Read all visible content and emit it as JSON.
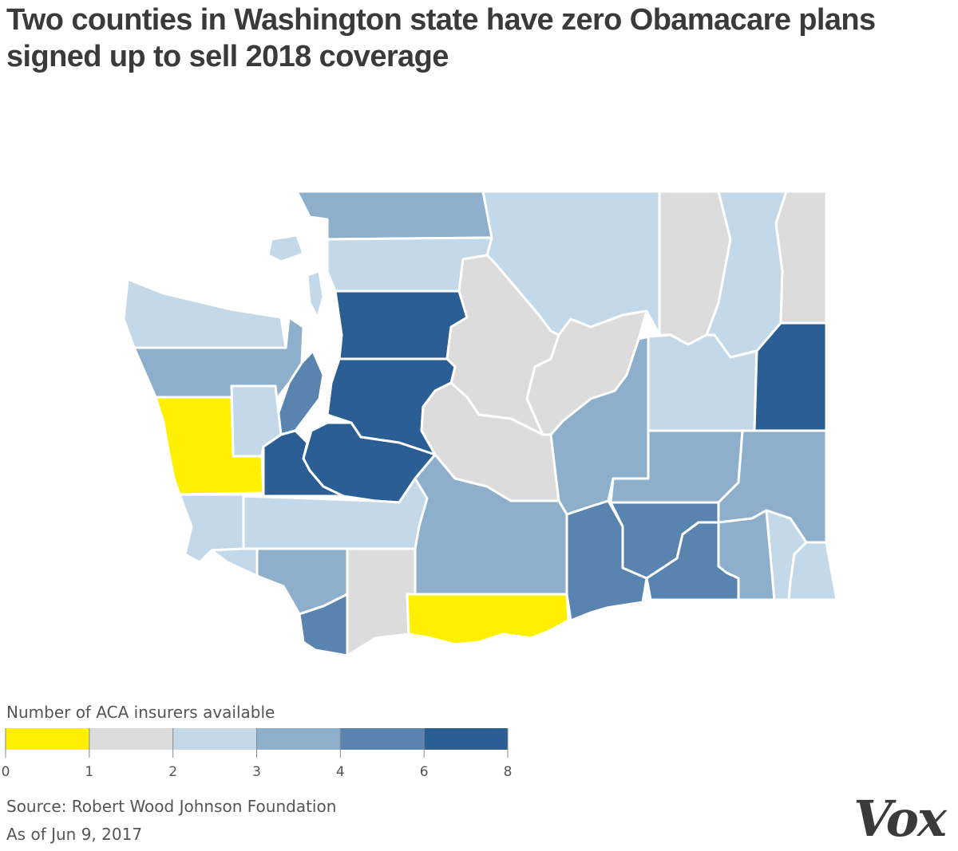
{
  "title": "Two counties in Washington state have zero Obamacare plans signed up to sell 2018 coverage",
  "colors": {
    "0": "#ffef00",
    "1": "#dcdcdc",
    "2": "#c3d8e8",
    "3": "#8eafcc",
    "4": "#5a84b0",
    "6": "#2a5e94"
  },
  "legend": {
    "title": "Number of ACA insurers available",
    "breaks": [
      "0",
      "1",
      "2",
      "3",
      "4",
      "6",
      "8"
    ],
    "bins": [
      {
        "from": 0,
        "to": 1,
        "color": "#ffef00"
      },
      {
        "from": 1,
        "to": 2,
        "color": "#dcdcdc"
      },
      {
        "from": 2,
        "to": 3,
        "color": "#c3d8e8"
      },
      {
        "from": 3,
        "to": 4,
        "color": "#8eafcc"
      },
      {
        "from": 4,
        "to": 6,
        "color": "#5a84b0"
      },
      {
        "from": 6,
        "to": 8,
        "color": "#2a5e94"
      }
    ]
  },
  "source": "Source: Robert Wood Johnson Foundation",
  "as_of": "As of Jun 9, 2017",
  "logo": "Vox",
  "counties": [
    {
      "id": "whatcom",
      "bin": "3"
    },
    {
      "id": "okanogan",
      "bin": "2"
    },
    {
      "id": "ferry",
      "bin": "1"
    },
    {
      "id": "stevens",
      "bin": "2"
    },
    {
      "id": "pend-oreille",
      "bin": "1"
    },
    {
      "id": "skagit",
      "bin": "2"
    },
    {
      "id": "san-juan",
      "bin": "2"
    },
    {
      "id": "island",
      "bin": "2"
    },
    {
      "id": "clallam",
      "bin": "2"
    },
    {
      "id": "jefferson",
      "bin": "3"
    },
    {
      "id": "snohomish",
      "bin": "6"
    },
    {
      "id": "chelan",
      "bin": "1"
    },
    {
      "id": "douglas",
      "bin": "1"
    },
    {
      "id": "lincoln",
      "bin": "2"
    },
    {
      "id": "spokane",
      "bin": "6"
    },
    {
      "id": "kitsap",
      "bin": "4"
    },
    {
      "id": "king",
      "bin": "6"
    },
    {
      "id": "mason",
      "bin": "2"
    },
    {
      "id": "grays-harbor",
      "bin": "0"
    },
    {
      "id": "pierce",
      "bin": "6"
    },
    {
      "id": "thurston",
      "bin": "6"
    },
    {
      "id": "kittitas",
      "bin": "1"
    },
    {
      "id": "grant",
      "bin": "3"
    },
    {
      "id": "adams",
      "bin": "3"
    },
    {
      "id": "whitman",
      "bin": "3"
    },
    {
      "id": "pacific",
      "bin": "2"
    },
    {
      "id": "lewis",
      "bin": "2"
    },
    {
      "id": "yakima",
      "bin": "3"
    },
    {
      "id": "benton",
      "bin": "4"
    },
    {
      "id": "franklin",
      "bin": "4"
    },
    {
      "id": "walla-walla",
      "bin": "4"
    },
    {
      "id": "columbia",
      "bin": "3"
    },
    {
      "id": "garfield",
      "bin": "2"
    },
    {
      "id": "asotin",
      "bin": "2"
    },
    {
      "id": "wahkiakum",
      "bin": "2"
    },
    {
      "id": "cowlitz",
      "bin": "3"
    },
    {
      "id": "skamania",
      "bin": "1"
    },
    {
      "id": "clark",
      "bin": "4"
    },
    {
      "id": "klickitat",
      "bin": "0"
    }
  ]
}
